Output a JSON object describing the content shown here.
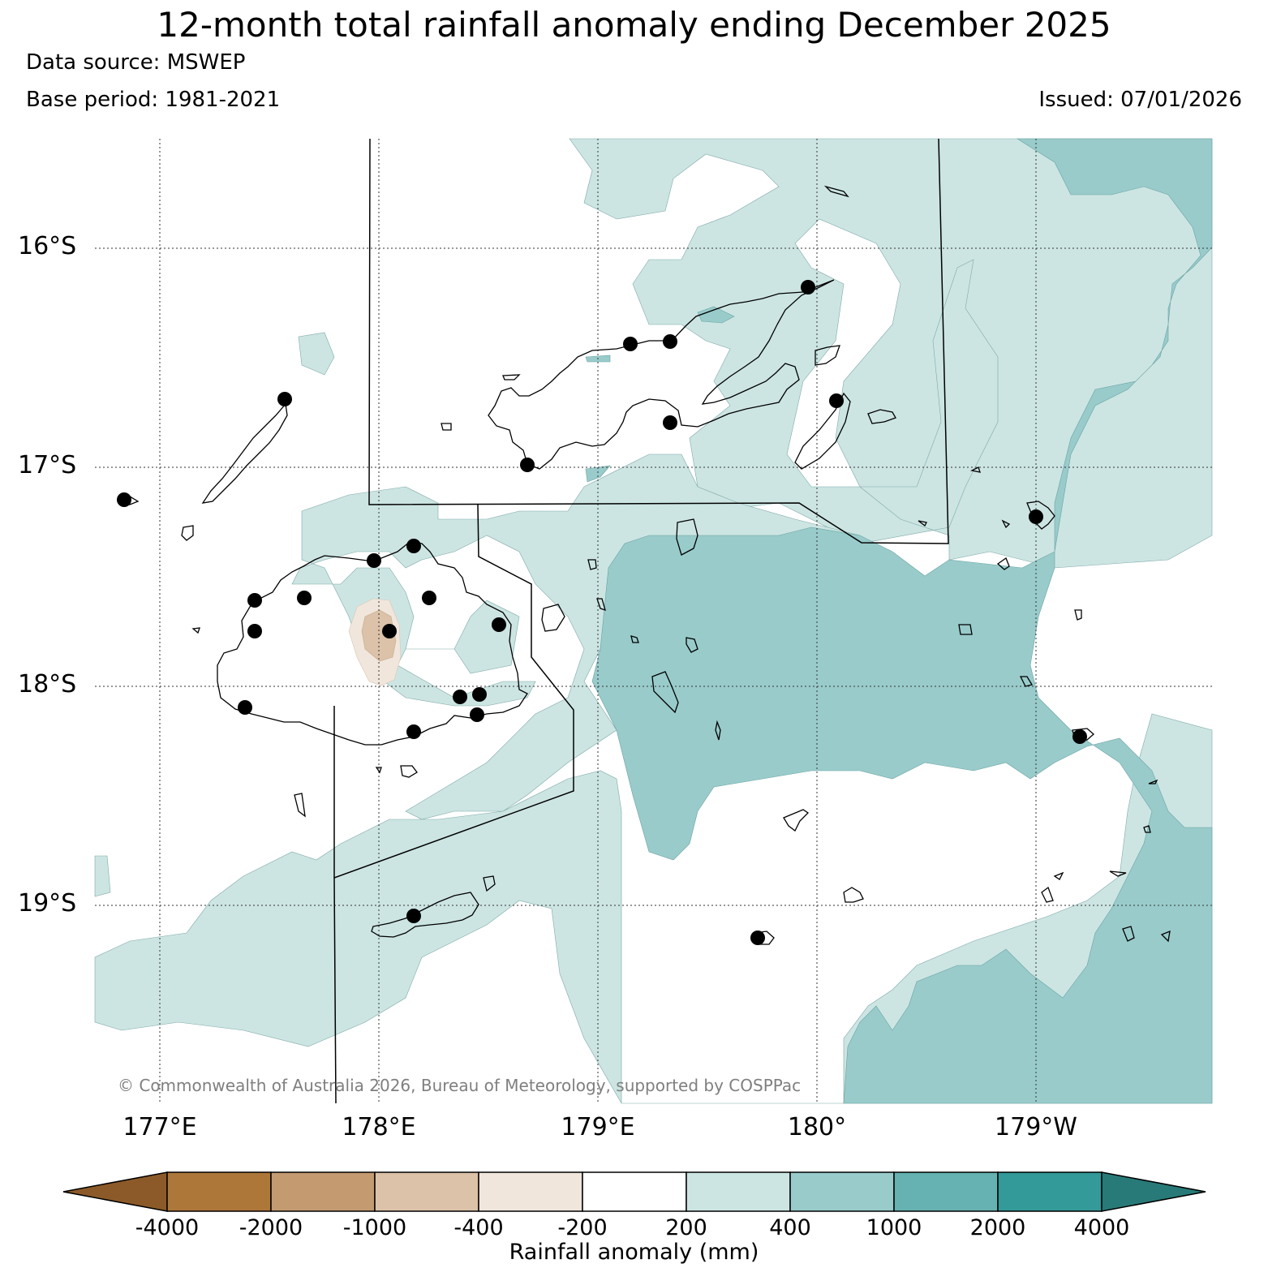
{
  "title": "12-month total rainfall anomaly ending December 2025",
  "data_source": "Data source: MSWEP",
  "base_period": "Base period: 1981-2021",
  "issued": "Issued: 07/01/2026",
  "lat_labels": [
    "16°S",
    "17°S",
    "18°S",
    "19°S"
  ],
  "lon_labels": [
    "177°E",
    "178°E",
    "179°E",
    "180°",
    "179°W"
  ],
  "copyright": "© Commonwealth of Australia 2026, Bureau of Meteorology, supported by COSPPac",
  "legend": {
    "title": "Rainfall anomaly (mm)",
    "tick_labels": [
      "-4000",
      "-2000",
      "-1000",
      "-400",
      "-200",
      "200",
      "400",
      "1000",
      "2000",
      "4000"
    ],
    "colors": [
      "#8c5a28",
      "#ad773a",
      "#c49b71",
      "#dbc2a8",
      "#f0e6dc",
      "#ffffff",
      "#cce5e3",
      "#99cbcb",
      "#66b2b2",
      "#339999",
      "#287a78"
    ]
  }
}
